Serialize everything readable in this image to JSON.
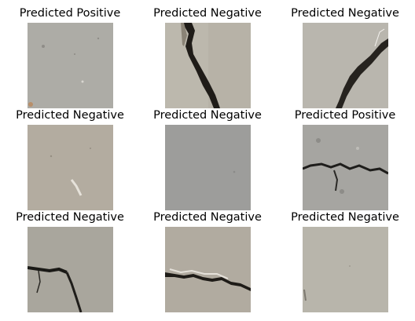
{
  "figure": {
    "panels": [
      {
        "title": "Predicted Positive",
        "image": "concrete-surface-no-crack",
        "base_color": "#a9a7a2"
      },
      {
        "title": "Predicted Negative",
        "image": "concrete-diagonal-crack",
        "base_color": "#b7b2a7"
      },
      {
        "title": "Predicted Negative",
        "image": "concrete-diagonal-crack",
        "base_color": "#b9b6ae"
      },
      {
        "title": "Predicted Negative",
        "image": "concrete-surface-light-mark",
        "base_color": "#b3aca0"
      },
      {
        "title": "Predicted Negative",
        "image": "concrete-smooth-grey",
        "base_color": "#9d9d9b"
      },
      {
        "title": "Predicted Positive",
        "image": "concrete-horizontal-crack",
        "base_color": "#a6a5a1"
      },
      {
        "title": "Predicted Negative",
        "image": "concrete-corner-crack",
        "base_color": "#a9a69d"
      },
      {
        "title": "Predicted Negative",
        "image": "concrete-horizontal-crack",
        "base_color": "#b1aba0"
      },
      {
        "title": "Predicted Negative",
        "image": "concrete-surface-no-crack",
        "base_color": "#b8b5ab"
      }
    ]
  }
}
